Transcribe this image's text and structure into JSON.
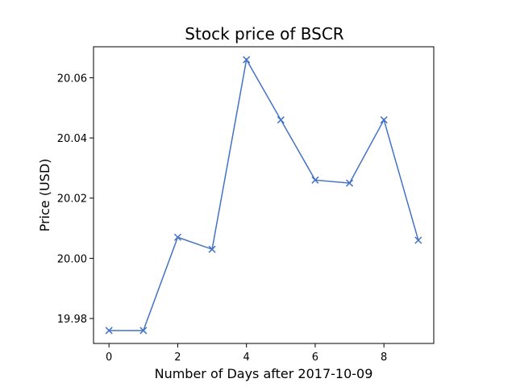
{
  "chart_data": {
    "type": "line",
    "title": "Stock price of BSCR",
    "xlabel": "Number of Days after 2017-10-09",
    "ylabel": "Price (USD)",
    "x": [
      0,
      1,
      2,
      3,
      4,
      5,
      6,
      7,
      8,
      9
    ],
    "series": [
      {
        "values": [
          19.976,
          19.976,
          20.007,
          20.003,
          20.066,
          20.046,
          20.026,
          20.025,
          20.046,
          20.006
        ],
        "color": "#4472c4",
        "marker": "x"
      }
    ],
    "xlim": [
      -0.45,
      9.45
    ],
    "ylim": [
      19.9717,
      20.0703
    ],
    "xticks": [
      0,
      2,
      4,
      6,
      8
    ],
    "yticks": [
      19.98,
      20.0,
      20.02,
      20.04,
      20.06
    ],
    "xtick_labels": [
      "0",
      "2",
      "4",
      "6",
      "8"
    ],
    "ytick_labels": [
      "19.98",
      "20.00",
      "20.02",
      "20.04",
      "20.06"
    ],
    "grid": false,
    "legend": "none"
  }
}
